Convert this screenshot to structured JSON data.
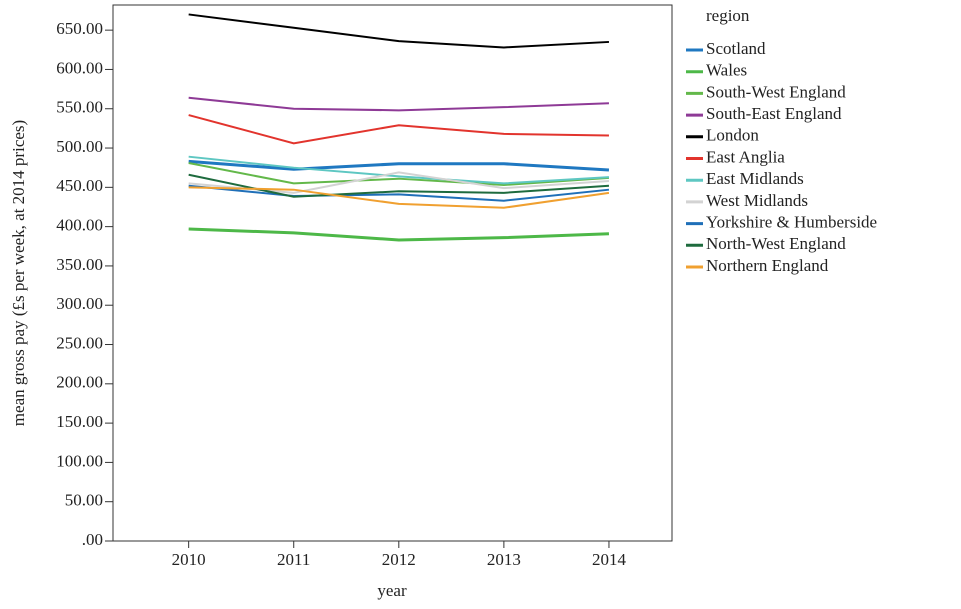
{
  "chart_data": {
    "type": "line",
    "x_label": "year",
    "y_label": "mean gross pay (£s per week, at 2014 prices)",
    "legend_title": "region",
    "legend_position": "right",
    "x": [
      2010,
      2011,
      2012,
      2013,
      2014
    ],
    "xlim": [
      2009.28,
      2014.6
    ],
    "xticks": [
      2010,
      2011,
      2012,
      2013,
      2014
    ],
    "ylim": [
      0,
      682
    ],
    "yticks": [
      {
        "value": 0,
        "label": ".00"
      },
      {
        "value": 50,
        "label": "50.00"
      },
      {
        "value": 100,
        "label": "100.00"
      },
      {
        "value": 150,
        "label": "150.00"
      },
      {
        "value": 200,
        "label": "200.00"
      },
      {
        "value": 250,
        "label": "250.00"
      },
      {
        "value": 300,
        "label": "300.00"
      },
      {
        "value": 350,
        "label": "350.00"
      },
      {
        "value": 400,
        "label": "400.00"
      },
      {
        "value": 450,
        "label": "450.00"
      },
      {
        "value": 500,
        "label": "500.00"
      },
      {
        "value": 550,
        "label": "550.00"
      },
      {
        "value": 600,
        "label": "600.00"
      },
      {
        "value": 650,
        "label": "650.00"
      }
    ],
    "series": [
      {
        "name": "Scotland",
        "color": "#1f78c1",
        "linewidth": 3,
        "values": [
          483,
          473,
          480,
          480,
          472
        ]
      },
      {
        "name": "Wales",
        "color": "#4db848",
        "linewidth": 3,
        "values": [
          397,
          392,
          383,
          386,
          391
        ]
      },
      {
        "name": "South-West England",
        "color": "#63b84a",
        "linewidth": 2,
        "values": [
          481,
          455,
          461,
          453,
          462
        ]
      },
      {
        "name": "South-East England",
        "color": "#8e3a96",
        "linewidth": 2,
        "values": [
          564,
          550,
          548,
          552,
          557
        ]
      },
      {
        "name": "London",
        "color": "#000000",
        "linewidth": 2,
        "values": [
          670,
          653,
          636,
          628,
          635
        ]
      },
      {
        "name": "East Anglia",
        "color": "#e2342d",
        "linewidth": 2,
        "values": [
          542,
          506,
          529,
          518,
          516
        ]
      },
      {
        "name": "East Midlands",
        "color": "#5ec7c2",
        "linewidth": 2,
        "values": [
          489,
          475,
          464,
          455,
          463
        ]
      },
      {
        "name": "West Midlands",
        "color": "#d3d3d3",
        "linewidth": 2,
        "values": [
          455,
          443,
          469,
          449,
          458
        ]
      },
      {
        "name": "Yorkshire & Humberside",
        "color": "#1f6fb8",
        "linewidth": 2,
        "values": [
          452,
          439,
          441,
          433,
          447
        ]
      },
      {
        "name": "North-West England",
        "color": "#1e6b3e",
        "linewidth": 2,
        "values": [
          466,
          438,
          445,
          443,
          452
        ]
      },
      {
        "name": "Northern England",
        "color": "#f0a030",
        "linewidth": 2,
        "values": [
          450,
          447,
          429,
          424,
          443
        ]
      }
    ]
  }
}
